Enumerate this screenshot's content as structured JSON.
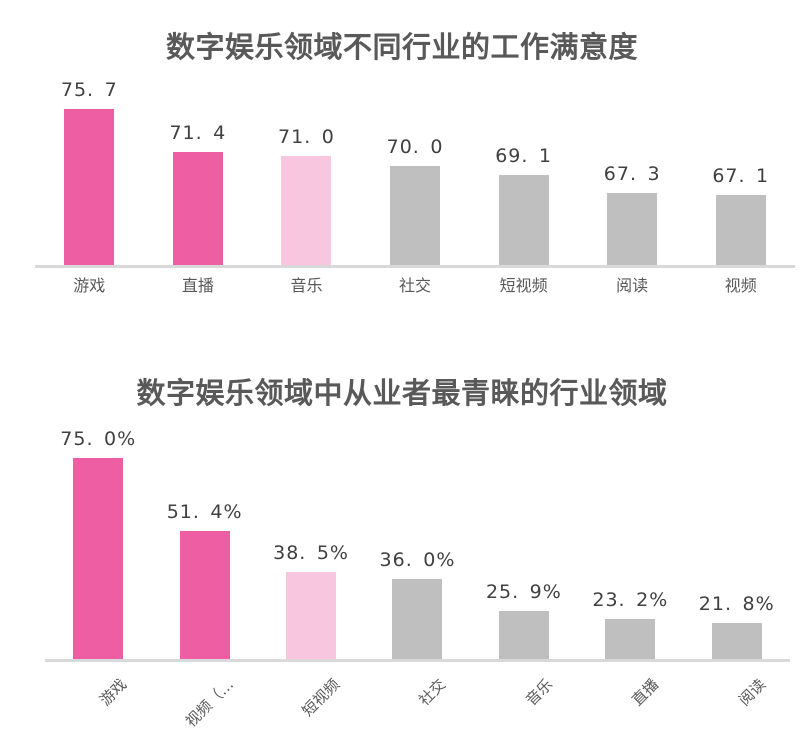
{
  "colors": {
    "bar_highlight_pink": "#EE5EA2",
    "bar_light_pink": "#F8C6DF",
    "bar_gray": "#BFBFBF",
    "axis_line": "#D9D9D9",
    "title_text": "#595959",
    "value_label_text": "#404040",
    "category_text": "#595959",
    "background": "#FFFFFF"
  },
  "chart_data": [
    {
      "type": "bar",
      "title": "数字娱乐领域不同行业的工作满意度",
      "categories": [
        "游戏",
        "直播",
        "音乐",
        "社交",
        "短视频",
        "阅读",
        "视频"
      ],
      "values": [
        75.7,
        71.4,
        71.0,
        70.0,
        69.1,
        67.3,
        67.1
      ],
      "value_labels": [
        "75.7",
        "71.4",
        "71.0",
        "70.0",
        "69.1",
        "67.3",
        "67.1"
      ],
      "bar_colors": [
        "#EE5EA2",
        "#EE5EA2",
        "#F8C6DF",
        "#BFBFBF",
        "#BFBFBF",
        "#BFBFBF",
        "#BFBFBF"
      ],
      "xlabel": "",
      "ylabel": "",
      "ylim": [
        60,
        77
      ],
      "grid": false,
      "legend": null,
      "value_label_position": "above",
      "x_label_rotation": 0
    },
    {
      "type": "bar",
      "title": "数字娱乐领域中从业者最青睐的行业领域",
      "categories": [
        "游戏",
        "视频（…",
        "短视频",
        "社交",
        "音乐",
        "直播",
        "阅读"
      ],
      "values": [
        75.0,
        51.4,
        38.5,
        36.0,
        25.9,
        23.2,
        21.8
      ],
      "value_labels": [
        "75.0%",
        "51.4%",
        "38.5%",
        "36.0%",
        "25.9%",
        "23.2%",
        "21.8%"
      ],
      "bar_colors": [
        "#EE5EA2",
        "#EE5EA2",
        "#F8C6DF",
        "#BFBFBF",
        "#BFBFBF",
        "#BFBFBF",
        "#BFBFBF"
      ],
      "xlabel": "",
      "ylabel": "",
      "ylim": [
        10,
        77
      ],
      "grid": false,
      "legend": null,
      "value_label_position": "above",
      "x_label_rotation": -45
    }
  ]
}
